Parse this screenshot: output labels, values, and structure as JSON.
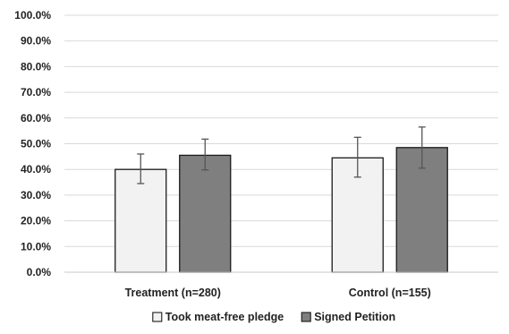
{
  "chart_data": {
    "type": "bar",
    "categories": [
      "Treatment (n=280)",
      "Control (n=155)"
    ],
    "series": [
      {
        "name": "Took meat-free pledge",
        "color": "#f2f2f2",
        "values": [
          40.0,
          44.5
        ],
        "error_low": [
          34.5,
          37.0
        ],
        "error_high": [
          46.0,
          52.5
        ]
      },
      {
        "name": "Signed Petition",
        "color": "#7f7f7f",
        "values": [
          45.5,
          48.5
        ],
        "error_low": [
          39.8,
          40.5
        ],
        "error_high": [
          51.8,
          56.5
        ]
      }
    ],
    "y_ticks": [
      "0.0%",
      "10.0%",
      "20.0%",
      "30.0%",
      "40.0%",
      "50.0%",
      "60.0%",
      "70.0%",
      "80.0%",
      "90.0%",
      "100.0%"
    ],
    "ylim": [
      0,
      100
    ],
    "grid": true,
    "legend_position": "bottom"
  }
}
